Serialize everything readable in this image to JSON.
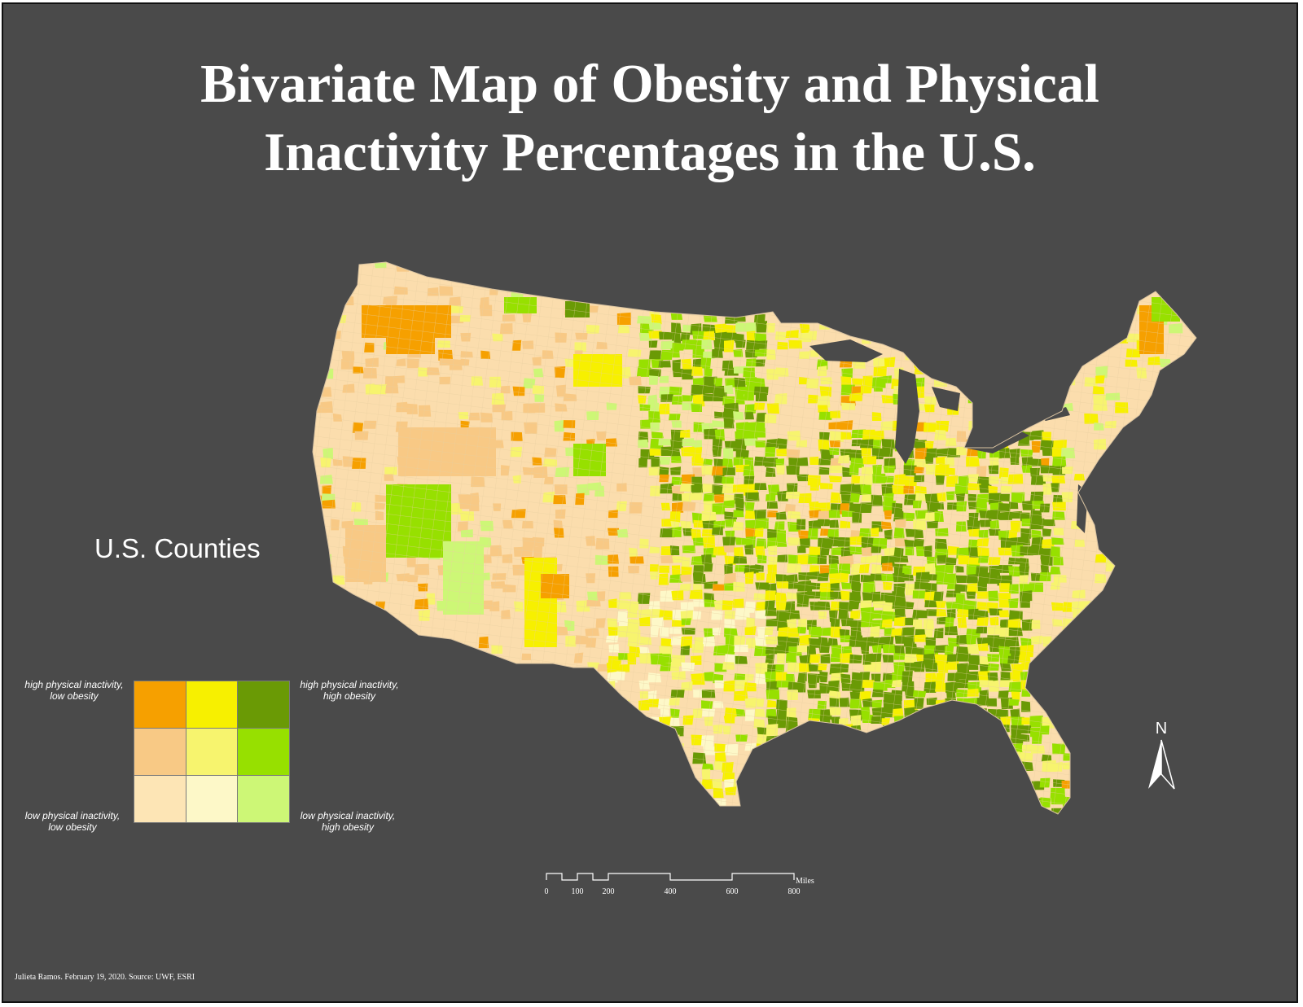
{
  "title_line1": "Bivariate Map of Obesity and Physical",
  "title_line2": "Inactivity Percentages in the U.S.",
  "subtitle": "U.S. Counties",
  "legend": {
    "top_left": [
      "high physical inactivity,",
      "low obesity"
    ],
    "top_right": [
      "high physical inactivity,",
      "high obesity"
    ],
    "bottom_left": [
      "low physical inactivity,",
      "low obesity"
    ],
    "bottom_right": [
      "low physical inactivity,",
      "high obesity"
    ],
    "colors": [
      [
        "#f6a000",
        "#f7f000",
        "#6a9a05"
      ],
      [
        "#f8c985",
        "#f7f46e",
        "#97e000"
      ],
      [
        "#fde5b5",
        "#fdf8c8",
        "#cdf776"
      ]
    ]
  },
  "scale_bar": {
    "unit": "Miles",
    "ticks": [
      "0",
      "100",
      "200",
      "400",
      "600",
      "800"
    ]
  },
  "north_label": "N",
  "credit": "Julieta Ramos. February 19, 2020. Source: UWF, ESRI",
  "colors": {
    "background": "#4a4a4a",
    "base_land": "#fbddad",
    "water": "#4a4a4a"
  }
}
